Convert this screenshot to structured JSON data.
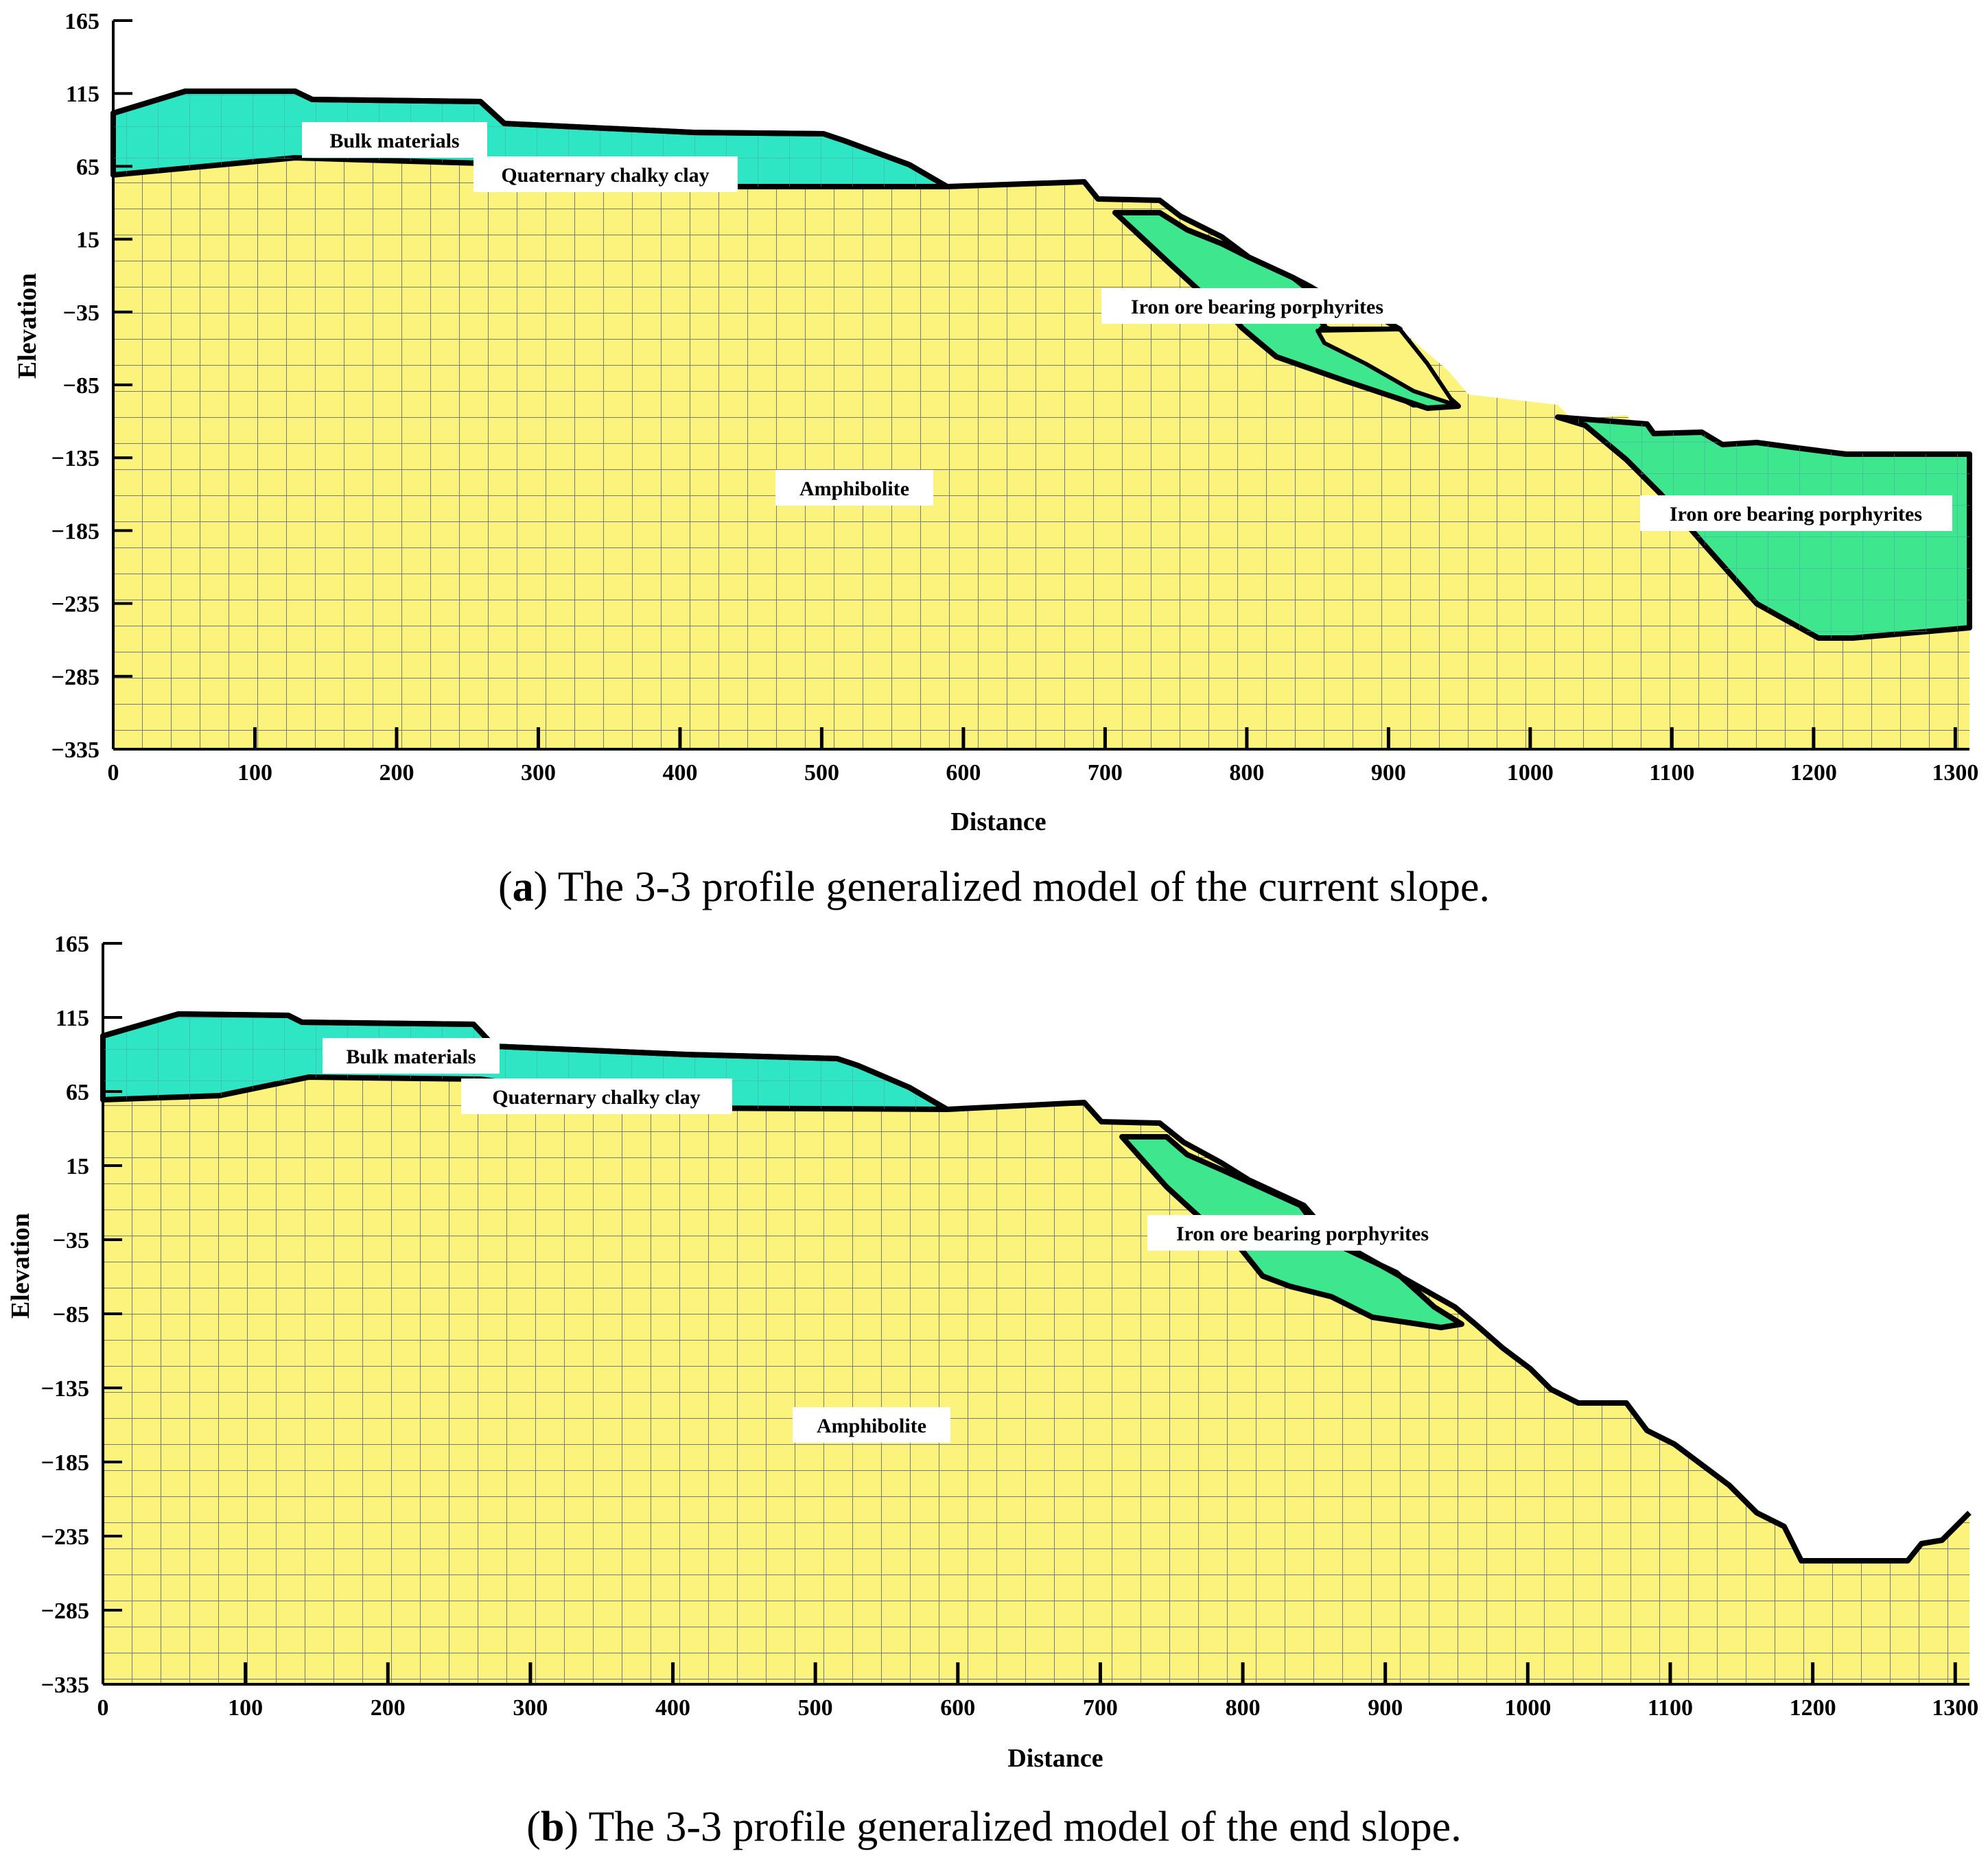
{
  "panels": [
    {
      "id": "a",
      "caption": {
        "letter": "a",
        "text": " The 3-3 profile generalized model of the current slope."
      },
      "xlabel": "Distance",
      "ylabel": "Elevation",
      "x_ticks": [
        "0",
        "100",
        "200",
        "300",
        "400",
        "500",
        "600",
        "700",
        "800",
        "900",
        "1000",
        "1100",
        "1200",
        "1300"
      ],
      "y_ticks": [
        "165",
        "115",
        "65",
        "15",
        "−35",
        "−85",
        "−135",
        "−185",
        "−235",
        "−285",
        "−335"
      ],
      "labels": {
        "bulk": "Bulk materials",
        "clay": "Quaternary chalky clay",
        "iron1": "Iron ore bearing porphyrites",
        "amph": "Amphibolite",
        "iron2": "Iron ore bearing porphyrites"
      }
    },
    {
      "id": "b",
      "caption": {
        "letter": "b",
        "text": " The 3-3 profile generalized model of the end slope."
      },
      "xlabel": "Distance",
      "ylabel": "Elevation",
      "x_ticks": [
        "0",
        "100",
        "200",
        "300",
        "400",
        "500",
        "600",
        "700",
        "800",
        "900",
        "1000",
        "1100",
        "1200",
        "1300"
      ],
      "y_ticks": [
        "165",
        "115",
        "65",
        "15",
        "−35",
        "−85",
        "−135",
        "−185",
        "−235",
        "−285",
        "−335"
      ],
      "labels": {
        "bulk": "Bulk materials",
        "clay": "Quaternary chalky clay",
        "iron1": "Iron ore bearing porphyrites",
        "amph": "Amphibolite"
      }
    }
  ],
  "colors": {
    "amphibolite": "#fbf37c",
    "bulk": "#2ee6c4",
    "porphyrite": "#3ee68e",
    "mesh": "#777777",
    "outline": "#000000"
  }
}
